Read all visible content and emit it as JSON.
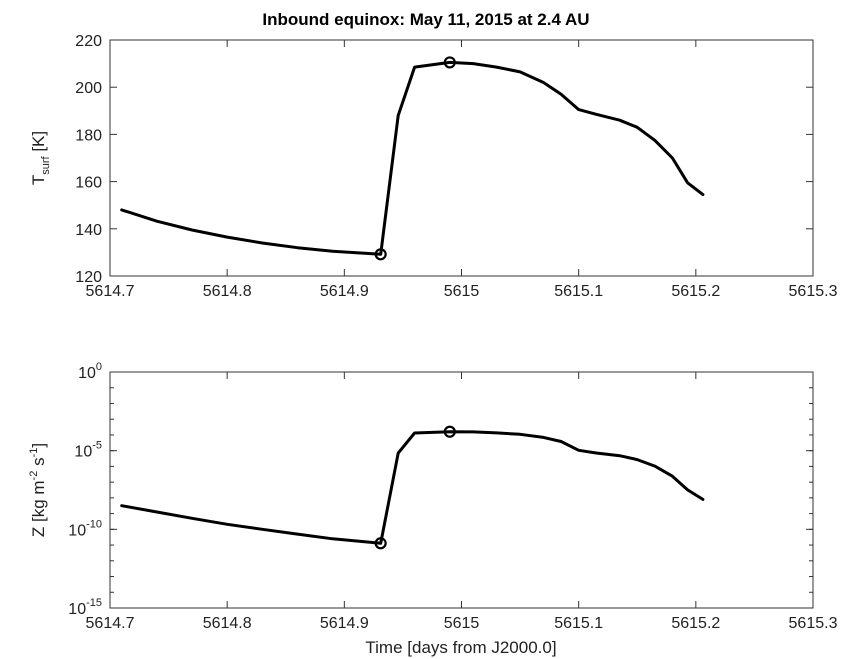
{
  "chart_data": [
    {
      "type": "line",
      "title": "Inbound equinox: May 11, 2015 at 2.4 AU",
      "ylabel_main": "T",
      "ylabel_sub": "surf",
      "ylabel_unit": " [K]",
      "xlim": [
        5614.7,
        5615.3
      ],
      "ylim": [
        120,
        220
      ],
      "xticks": [
        5614.7,
        5614.8,
        5614.9,
        5615.0,
        5615.1,
        5615.2,
        5615.3
      ],
      "xtick_labels": [
        "5614.7",
        "5614.8",
        "5614.9",
        "5615",
        "5615.1",
        "5615.2",
        "5615.3"
      ],
      "yticks": [
        120,
        140,
        160,
        180,
        200,
        220
      ],
      "ytick_labels": [
        "120",
        "140",
        "160",
        "180",
        "200",
        "220"
      ],
      "grid": false,
      "x": [
        5614.71,
        5614.74,
        5614.77,
        5614.8,
        5614.83,
        5614.86,
        5614.89,
        5614.931,
        5614.946,
        5614.96,
        5614.99,
        5615.01,
        5615.03,
        5615.05,
        5615.07,
        5615.085,
        5615.1,
        5615.115,
        5615.135,
        5615.15,
        5615.165,
        5615.18,
        5615.193,
        5615.206
      ],
      "y": [
        148,
        143.2,
        139.5,
        136.5,
        134.0,
        132.0,
        130.5,
        129.2,
        188,
        208.5,
        210.5,
        210,
        208.5,
        206.5,
        202,
        197,
        190.5,
        188.5,
        186,
        183,
        177.5,
        170,
        159.5,
        154.5
      ],
      "markers": [
        {
          "x": 5614.931,
          "y": 129.2
        },
        {
          "x": 5614.99,
          "y": 210.5
        }
      ]
    },
    {
      "type": "line",
      "xlabel": "Time [days from J2000.0]",
      "ylabel": "Z [kg m-2 s-1]",
      "ylabel_parts": [
        "Z [kg m",
        "-2",
        " s",
        "-1",
        "]"
      ],
      "yscale": "log",
      "xlim": [
        5614.7,
        5615.3
      ],
      "ylim": [
        1e-15,
        1
      ],
      "xticks": [
        5614.7,
        5614.8,
        5614.9,
        5615.0,
        5615.1,
        5615.2,
        5615.3
      ],
      "xtick_labels": [
        "5614.7",
        "5614.8",
        "5614.9",
        "5615",
        "5615.1",
        "5615.2",
        "5615.3"
      ],
      "ytick_exponents": [
        0,
        -5,
        -10,
        -15
      ],
      "ytick_base": "10",
      "ytick_exp_labels": [
        "0",
        "-5",
        "-10",
        "-15"
      ],
      "grid": false,
      "x": [
        5614.71,
        5614.74,
        5614.77,
        5614.8,
        5614.83,
        5614.86,
        5614.89,
        5614.931,
        5614.946,
        5614.96,
        5614.99,
        5615.01,
        5615.03,
        5615.05,
        5615.07,
        5615.085,
        5615.1,
        5615.115,
        5615.135,
        5615.15,
        5615.165,
        5615.18,
        5615.193,
        5615.206
      ],
      "y": [
        3.2e-09,
        1.26e-09,
        5e-10,
        2.1e-10,
        1e-10,
        5e-11,
        2.5e-11,
        1.3e-11,
        7e-06,
        0.000132,
        0.00016,
        0.000155,
        0.000135,
        0.00011,
        7e-05,
        3.8e-05,
        1.05e-05,
        7.1e-06,
        4.8e-06,
        2.7e-06,
        1.05e-06,
        2.4e-07,
        3.2e-08,
        8e-09
      ],
      "markers": [
        {
          "x": 5614.931,
          "y": 1.3e-11
        },
        {
          "x": 5614.99,
          "y": 0.00016
        }
      ]
    }
  ]
}
